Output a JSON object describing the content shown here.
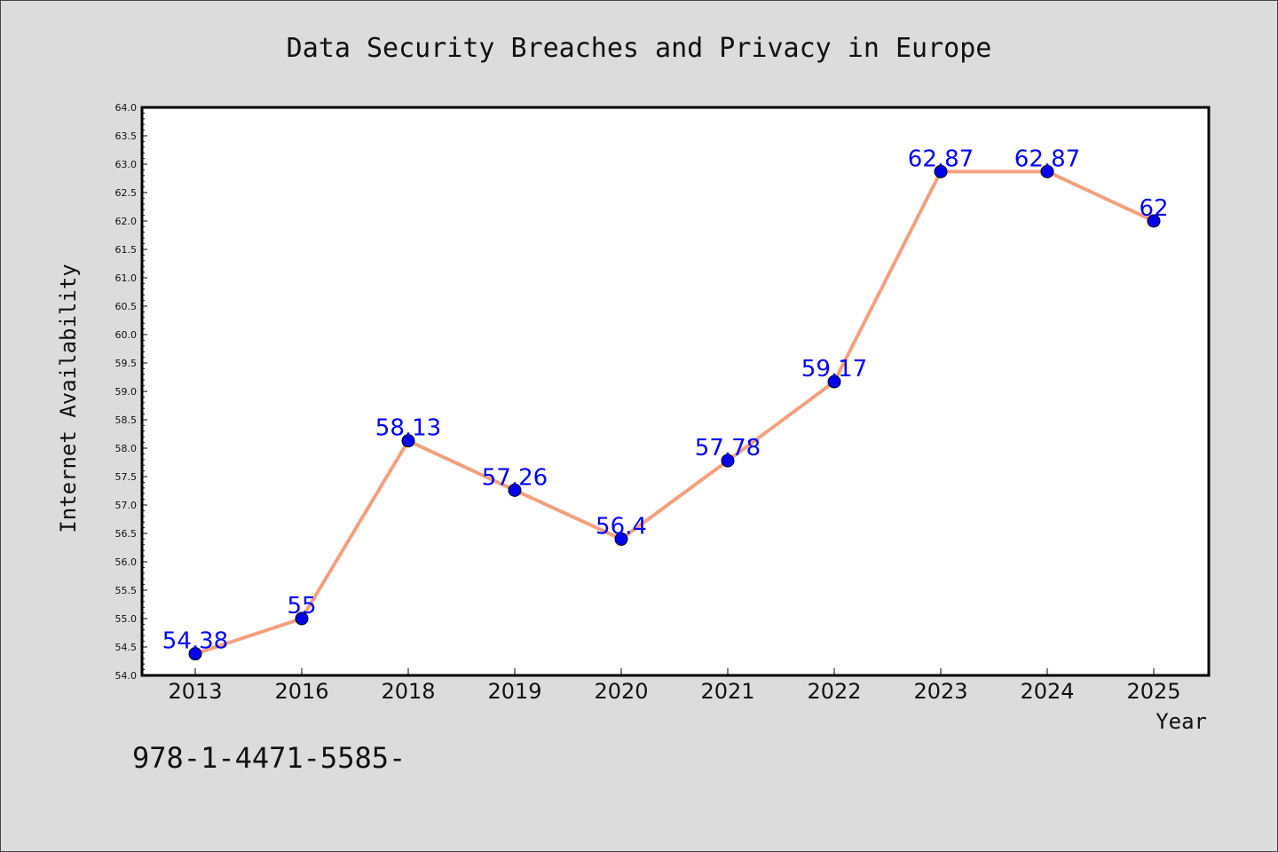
{
  "footer": {
    "text": "978-1-4471-5585-"
  },
  "colors": {
    "background": "#dcdcdc",
    "plot_background": "#ffffff",
    "line": "#f4a07e",
    "marker": "#0000ee",
    "data_label": "#0000ff"
  },
  "chart_data": {
    "type": "line",
    "title": "Data Security Breaches and Privacy in Europe",
    "xlabel": "Year",
    "ylabel": "Internet Availability",
    "categories": [
      "2013",
      "2016",
      "2018",
      "2019",
      "2020",
      "2021",
      "2022",
      "2023",
      "2024",
      "2025"
    ],
    "series": [
      {
        "values": [
          54.38,
          55,
          58.13,
          57.26,
          56.4,
          57.78,
          59.17,
          62.87,
          62.87,
          62
        ],
        "labels": [
          "54.38",
          "55",
          "58.13",
          "57.26",
          "56.4",
          "57.78",
          "59.17",
          "62.87",
          "62.87",
          "62"
        ]
      }
    ],
    "ylim": [
      54.0,
      64.0
    ],
    "yticks": [
      "54.0",
      "54.5",
      "55.0",
      "55.5",
      "56.0",
      "56.5",
      "57.0",
      "57.5",
      "58.0",
      "58.5",
      "59.0",
      "59.5",
      "60.0",
      "60.5",
      "61.0",
      "61.5",
      "62.0",
      "62.5",
      "63.0",
      "63.5",
      "64.0"
    ],
    "grid": false,
    "legend": "none"
  }
}
